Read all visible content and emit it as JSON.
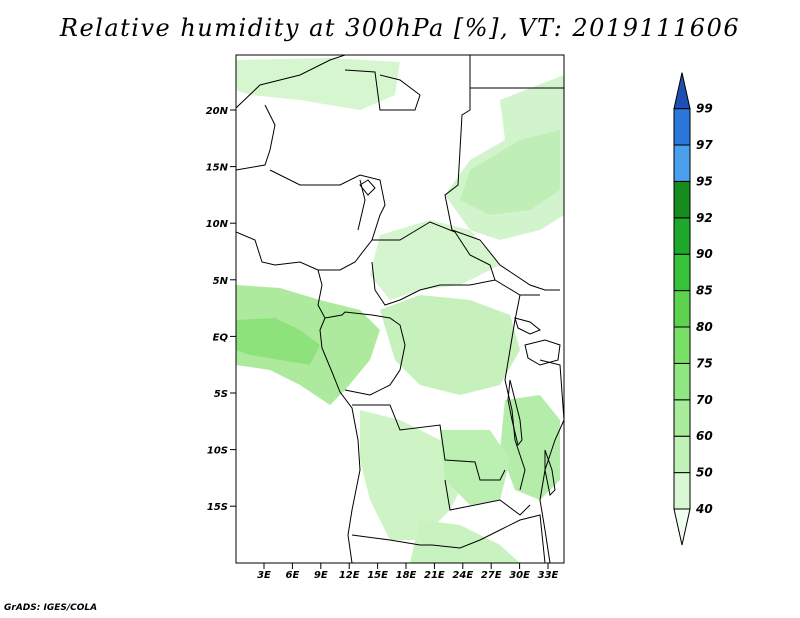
{
  "title": "Relative humidity at 300hPa [%], VT: 2019111606",
  "credit": "GrADS: IGES/COLA",
  "map": {
    "lat_ticks": [
      "20N",
      "15N",
      "10N",
      "5N",
      "EQ",
      "5S",
      "10S",
      "15S"
    ],
    "lon_ticks": [
      "3E",
      "6E",
      "9E",
      "12E",
      "15E",
      "18E",
      "21E",
      "24E",
      "27E",
      "30E",
      "33E"
    ]
  },
  "colorbar": {
    "levels": [
      "40",
      "50",
      "60",
      "70",
      "75",
      "80",
      "85",
      "90",
      "92",
      "95",
      "97",
      "99"
    ],
    "colors": [
      "#f0fff0",
      "#d8f8d4",
      "#c0f2b8",
      "#a8ec9c",
      "#90e680",
      "#78e066",
      "#5cd24e",
      "#36c23a",
      "#1ea82a",
      "#178c1e",
      "#4aa0ec",
      "#2a78dc",
      "#1e50b4"
    ]
  }
}
